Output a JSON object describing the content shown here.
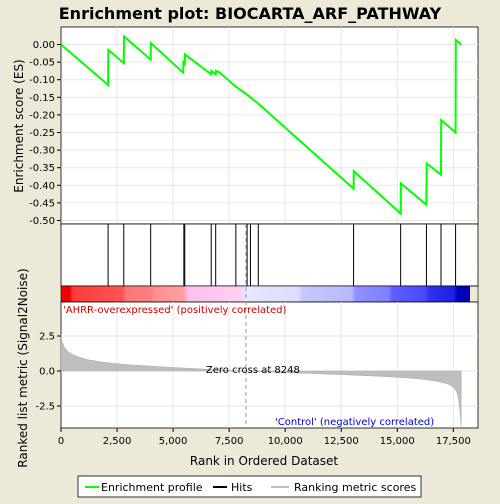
{
  "chart_data": {
    "type": "line",
    "title": "Enrichment plot: BIOCARTA_ARF_PATHWAY",
    "es_panel": {
      "ylabel": "Enrichment score (ES)",
      "ylim": [
        -0.5,
        0.04
      ],
      "yticks": [
        "0.00",
        "-0.05",
        "-0.10",
        "-0.15",
        "-0.20",
        "-0.25",
        "-0.30",
        "-0.35",
        "-0.40",
        "-0.45",
        "-0.50"
      ],
      "ytick_values": [
        0.0,
        -0.05,
        -0.1,
        -0.15,
        -0.2,
        -0.25,
        -0.3,
        -0.35,
        -0.4,
        -0.45,
        -0.5
      ],
      "series": [
        {
          "name": "Enrichment profile",
          "color": "#00ff00",
          "x": [
            0,
            2100,
            2110,
            2800,
            2810,
            4000,
            4010,
            5450,
            5460,
            5520,
            5530,
            6700,
            6710,
            6900,
            6910,
            7050,
            7800,
            8300,
            8450,
            8800,
            13050,
            13060,
            15150,
            15160,
            16300,
            16310,
            16950,
            16960,
            17600,
            17610,
            17850
          ],
          "y": [
            0.0,
            -0.115,
            -0.015,
            -0.053,
            0.023,
            -0.043,
            0.004,
            -0.08,
            -0.05,
            -0.055,
            -0.028,
            -0.085,
            -0.075,
            -0.085,
            -0.075,
            -0.078,
            -0.12,
            -0.142,
            -0.15,
            -0.168,
            -0.41,
            -0.36,
            -0.48,
            -0.395,
            -0.455,
            -0.338,
            -0.37,
            -0.215,
            -0.25,
            0.013,
            0.0
          ]
        }
      ]
    },
    "hits": [
      2100,
      2800,
      4000,
      5480,
      5520,
      6700,
      6900,
      7800,
      8300,
      8450,
      8800,
      13050,
      15150,
      16300,
      16950,
      17600
    ],
    "metric_panel": {
      "ylabel": "Ranked list metric (Signal2Noise)",
      "xlabel": "Rank in Ordered Dataset",
      "xlim": [
        0,
        18600
      ],
      "ylim": [
        -4.25,
        4.0
      ],
      "xticks": [
        "0",
        "2,500",
        "5,000",
        "7,500",
        "10,000",
        "12,500",
        "15,000",
        "17,500"
      ],
      "xtick_values": [
        0,
        2500,
        5000,
        7500,
        10000,
        12500,
        15000,
        17500
      ],
      "yticks": [
        "2.5",
        "0.0",
        "-2.5"
      ],
      "ytick_values": [
        2.5,
        0.0,
        -2.5
      ],
      "metric_curve": {
        "x": [
          0,
          50,
          150,
          300,
          500,
          800,
          1200,
          2000,
          3000,
          4000,
          5000,
          6000,
          7000,
          8248,
          9500,
          11000,
          12500,
          13500,
          14500,
          15500,
          16300,
          16800,
          17200,
          17400,
          17550,
          17650,
          17700,
          17750,
          17800,
          17850
        ],
        "y": [
          2.6,
          2.1,
          1.7,
          1.4,
          1.2,
          1.0,
          0.8,
          0.6,
          0.45,
          0.35,
          0.25,
          0.17,
          0.08,
          0.0,
          -0.08,
          -0.17,
          -0.26,
          -0.33,
          -0.4,
          -0.5,
          -0.62,
          -0.75,
          -0.9,
          -1.05,
          -1.25,
          -1.5,
          -1.75,
          -2.2,
          -3.0,
          -4.0
        ]
      },
      "zero_cross_label": "Zero cross at 8248",
      "zero_cross_x": 8248,
      "positive_label": "'AHRR-overexpressed' (positively correlated)",
      "negative_label": "'Control' (negatively correlated)"
    },
    "legend": [
      {
        "label": "Enrichment profile",
        "color": "#00ff00"
      },
      {
        "label": "Hits",
        "color": "#000000"
      },
      {
        "label": "Ranking metric scores",
        "color": "#bebebe"
      }
    ],
    "colors": {
      "profile": "#00ff00",
      "positive_text": "#cc0000",
      "negative_text": "#0000cc",
      "metric_fill": "#bebebe"
    }
  }
}
